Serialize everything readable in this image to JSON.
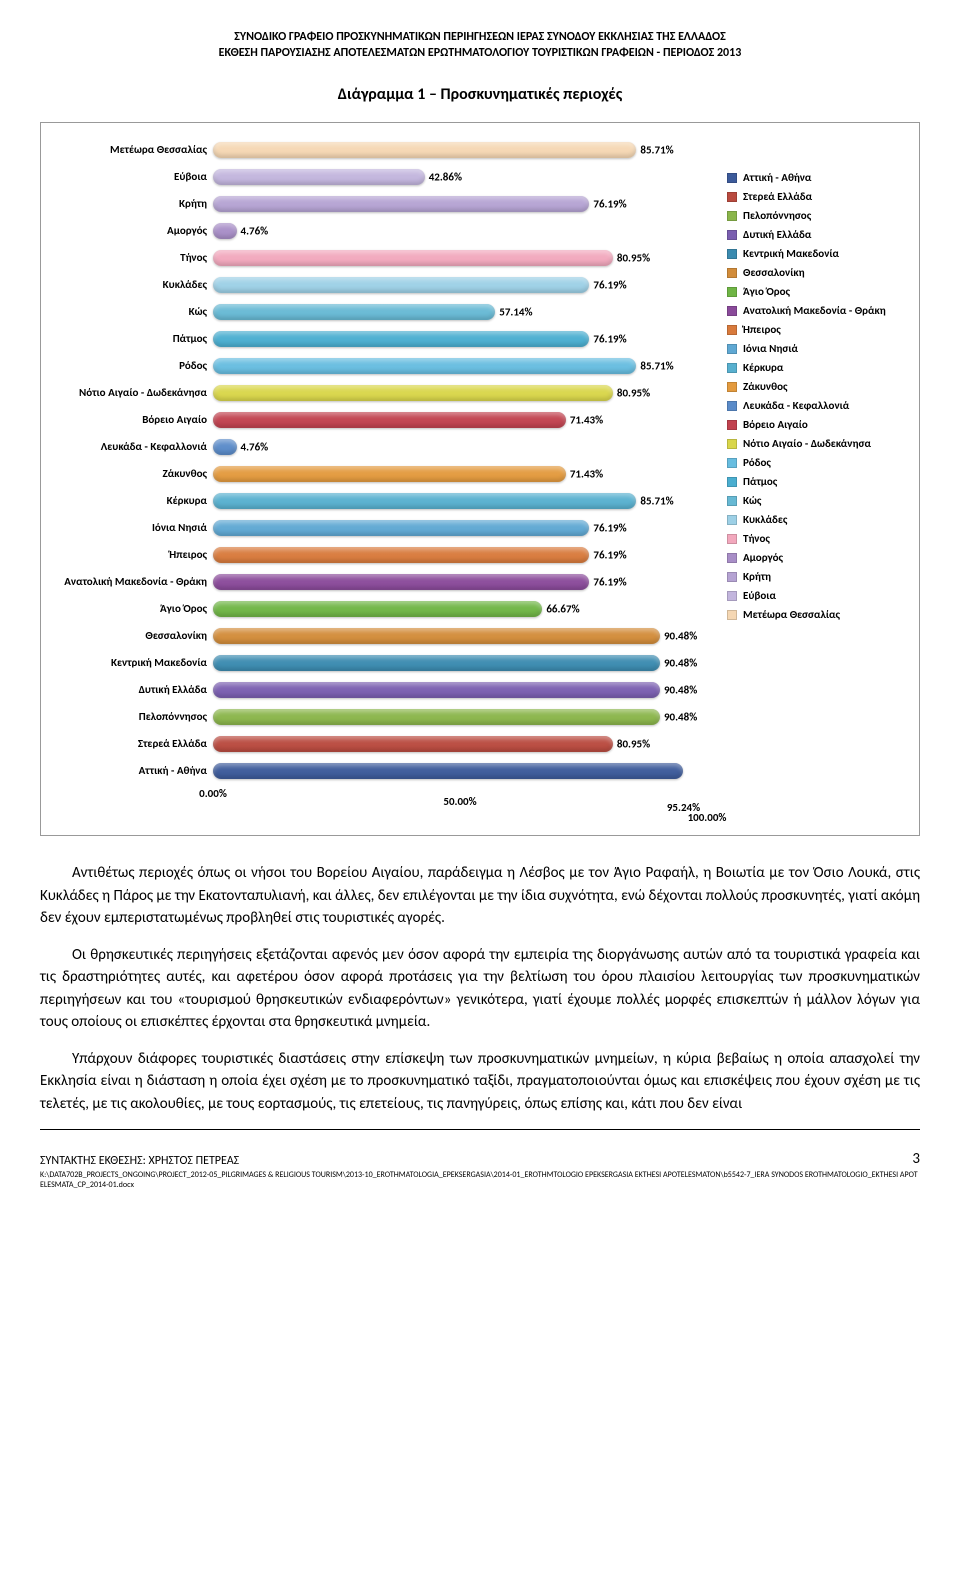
{
  "header": {
    "line1": "ΣΥΝΟΔΙΚΟ ΓΡΑΦΕΙΟ ΠΡΟΣΚΥΝΗΜΑΤΙΚΩΝ ΠΕΡΙΗΓΗΣΕΩΝ ΙΕΡΑΣ ΣΥΝΟΔΟΥ ΕΚΚΛΗΣΙΑΣ ΤΗΣ ΕΛΛΑΔΟΣ",
    "line2": "ΕΚΘΕΣΗ ΠΑΡΟΥΣΙΑΣΗΣ ΑΠΟΤΕΛΕΣΜΑΤΩΝ ΕΡΩΤΗΜΑΤΟΛΟΓΙΟΥ ΤΟΥΡΙΣΤΙΚΩΝ ΓΡΑΦΕΙΩΝ - ΠΕΡΙΟΔΟΣ 2013"
  },
  "chart": {
    "title": "Διάγραμμα 1 – Προσκυνηματικές περιοχές",
    "type": "bar",
    "x_max": 100,
    "axis_ticks": [
      0,
      50,
      100
    ],
    "axis_labels": [
      "0.00%",
      "50.00%",
      "100.00%"
    ],
    "axis_extra": "95.24%",
    "background_color": "#ffffff",
    "bars": [
      {
        "label": "Μετέωρα Θεσσαλίας",
        "value": 85.71,
        "text": "85.71%",
        "color": "#f5d7b3"
      },
      {
        "label": "Εύβοια",
        "value": 42.86,
        "text": "42.86%",
        "color": "#c2b5dd"
      },
      {
        "label": "Κρήτη",
        "value": 76.19,
        "text": "76.19%",
        "color": "#b5a3d3"
      },
      {
        "label": "Αμοργός",
        "value": 4.76,
        "text": "4.76%",
        "color": "#a88ec7"
      },
      {
        "label": "Τήνος",
        "value": 80.95,
        "text": "80.95%",
        "color": "#f2a8bd"
      },
      {
        "label": "Κυκλάδες",
        "value": 76.19,
        "text": "76.19%",
        "color": "#9dd0e6"
      },
      {
        "label": "Κώς",
        "value": 57.14,
        "text": "57.14%",
        "color": "#67b9d4"
      },
      {
        "label": "Πάτμος",
        "value": 76.19,
        "text": "76.19%",
        "color": "#4aaed0"
      },
      {
        "label": "Ρόδος",
        "value": 85.71,
        "text": "85.71%",
        "color": "#67bde0"
      },
      {
        "label": "Νότιο Αιγαίο - Δωδεκάνησα",
        "value": 80.95,
        "text": "80.95%",
        "color": "#d9d64a"
      },
      {
        "label": "Βόρειο Αιγαίο",
        "value": 71.43,
        "text": "71.43%",
        "color": "#c1424f"
      },
      {
        "label": "Λευκάδα - Κεφαλλονιά",
        "value": 4.76,
        "text": "4.76%",
        "color": "#5a8bc9"
      },
      {
        "label": "Ζάκυνθος",
        "value": 71.43,
        "text": "71.43%",
        "color": "#e39a3e"
      },
      {
        "label": "Κέρκυρα",
        "value": 85.71,
        "text": "85.71%",
        "color": "#58b0cf"
      },
      {
        "label": "Ιόνια Νησιά",
        "value": 76.19,
        "text": "76.19%",
        "color": "#5fa8d3"
      },
      {
        "label": "Ήπειρος",
        "value": 76.19,
        "text": "76.19%",
        "color": "#d87a3c"
      },
      {
        "label": "Ανατολική Μακεδονία - Θράκη",
        "value": 76.19,
        "text": "76.19%",
        "color": "#8a4a9a"
      },
      {
        "label": "Άγιο Όρος",
        "value": 66.67,
        "text": "66.67%",
        "color": "#6fb545"
      },
      {
        "label": "Θεσσαλονίκη",
        "value": 90.48,
        "text": "90.48%",
        "color": "#d28c3a"
      },
      {
        "label": "Κεντρική Μακεδονία",
        "value": 90.48,
        "text": "90.48%",
        "color": "#3b8bb0"
      },
      {
        "label": "Δυτική Ελλάδα",
        "value": 90.48,
        "text": "90.48%",
        "color": "#7a5eb0"
      },
      {
        "label": "Πελοπόννησος",
        "value": 90.48,
        "text": "90.48%",
        "color": "#8ab54a"
      },
      {
        "label": "Στερεά Ελλάδα",
        "value": 80.95,
        "text": "80.95%",
        "color": "#b94a3f"
      },
      {
        "label": "Αττική - Αθήνα",
        "value": 95.24,
        "text": "",
        "color": "#3c5a9a"
      }
    ],
    "legend": [
      {
        "label": "Αττική - Αθήνα",
        "color": "#3c5a9a"
      },
      {
        "label": "Στερεά Ελλάδα",
        "color": "#b94a3f"
      },
      {
        "label": "Πελοπόννησος",
        "color": "#8ab54a"
      },
      {
        "label": "Δυτική Ελλάδα",
        "color": "#7a5eb0"
      },
      {
        "label": "Κεντρική Μακεδονία",
        "color": "#3b8bb0"
      },
      {
        "label": "Θεσσαλονίκη",
        "color": "#d28c3a"
      },
      {
        "label": "Άγιο Όρος",
        "color": "#6fb545"
      },
      {
        "label": "Ανατολική Μακεδονία - Θράκη",
        "color": "#8a4a9a"
      },
      {
        "label": "Ήπειρος",
        "color": "#d87a3c"
      },
      {
        "label": "Ιόνια Νησιά",
        "color": "#5fa8d3"
      },
      {
        "label": "Κέρκυρα",
        "color": "#58b0cf"
      },
      {
        "label": "Ζάκυνθος",
        "color": "#e39a3e"
      },
      {
        "label": "Λευκάδα - Κεφαλλονιά",
        "color": "#5a8bc9"
      },
      {
        "label": "Βόρειο Αιγαίο",
        "color": "#c1424f"
      },
      {
        "label": "Νότιο Αιγαίο - Δωδεκάνησα",
        "color": "#d9d64a"
      },
      {
        "label": "Ρόδος",
        "color": "#67bde0"
      },
      {
        "label": "Πάτμος",
        "color": "#4aaed0"
      },
      {
        "label": "Κώς",
        "color": "#67b9d4"
      },
      {
        "label": "Κυκλάδες",
        "color": "#9dd0e6"
      },
      {
        "label": "Τήνος",
        "color": "#f2a8bd"
      },
      {
        "label": "Αμοργός",
        "color": "#a88ec7"
      },
      {
        "label": "Κρήτη",
        "color": "#b5a3d3"
      },
      {
        "label": "Εύβοια",
        "color": "#c2b5dd"
      },
      {
        "label": "Μετέωρα Θεσσαλίας",
        "color": "#f5d7b3"
      }
    ]
  },
  "body": {
    "p1": "Αντιθέτως περιοχές όπως οι νήσοι του Βορείου Αιγαίου, παράδειγμα η Λέσβος με τον Άγιο Ραφαήλ, η Βοιωτία με τον Όσιο Λουκά, στις Κυκλάδες η Πάρος με την Εκατονταπυλιανή, και άλλες, δεν επιλέγονται με την ίδια συχνότητα, ενώ δέχονται πολλούς προσκυνητές, γιατί ακόμη δεν έχουν εμπεριστατωμένως προβληθεί στις τουριστικές αγορές.",
    "p2": "Οι θρησκευτικές περιηγήσεις εξετάζονται αφενός μεν όσον αφορά την εμπειρία της διοργάνωσης αυτών από τα τουριστικά γραφεία και τις δραστηριότητες αυτές, και αφετέρου όσον αφορά προτάσεις για την βελτίωση του όρου πλαισίου λειτουργίας των προσκυνηματικών περιηγήσεων και του «τουρισμού θρησκευτικών ενδιαφερόντων» γενικότερα, γιατί έχουμε πολλές μορφές επισκεπτών ή μάλλον λόγων για τους οποίους οι επισκέπτες έρχονται στα θρησκευτικά μνημεία.",
    "p3": "Υπάρχουν διάφορες τουριστικές διαστάσεις στην επίσκεψη των προσκυνηματικών μνημείων, η κύρια βεβαίως η οποία απασχολεί την Εκκλησία είναι η διάσταση η οποία έχει σχέση με το προσκυνηματικό ταξίδι, πραγματοποιούνται όμως και επισκέψεις που έχουν σχέση με τις τελετές, με τις ακολουθίες, με τους εορτασμούς, τις επετείους, τις πανηγύρεις, όπως επίσης και, κάτι που δεν είναι"
  },
  "footer": {
    "author": "ΣΥΝΤΑΚΤΗΣ ΕΚΘΕΣΗΣ: ΧΡΗΣΤΟΣ ΠΕΤΡΕΑΣ",
    "page": "3",
    "path": "K:\\DATA702B_PROJECTS_ONGOING\\PROJECT_2012-05_PILGRIMAGES & RELIGIOUS TOURISM\\2013-10_EROTHMATOLOGIA_EPEKSERGASIA\\2014-01_EROTHMTOLOGIO EPEKSERGASIA EKTHESI APOTELESMATON\\b5542-7_IERA SYNODOS EROTHMATOLOGIO_EKTHESI APOTELESMATA_CP_2014-01.docx"
  }
}
